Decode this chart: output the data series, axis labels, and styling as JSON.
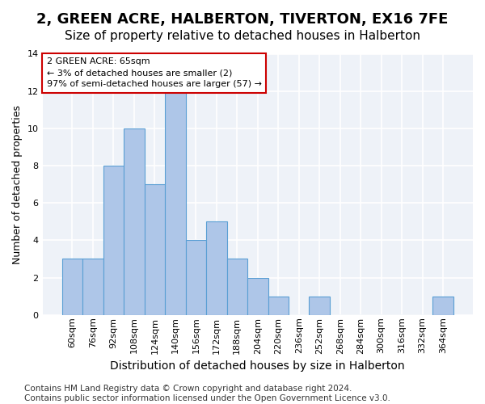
{
  "title": "2, GREEN ACRE, HALBERTON, TIVERTON, EX16 7FE",
  "subtitle": "Size of property relative to detached houses in Halberton",
  "xlabel": "Distribution of detached houses by size in Halberton",
  "ylabel": "Number of detached properties",
  "bar_values": [
    3,
    3,
    8,
    10,
    7,
    12,
    4,
    5,
    3,
    2,
    1,
    0,
    1,
    0,
    0,
    0,
    0,
    0,
    1
  ],
  "bin_labels": [
    "60sqm",
    "76sqm",
    "92sqm",
    "108sqm",
    "124sqm",
    "140sqm",
    "156sqm",
    "172sqm",
    "188sqm",
    "204sqm",
    "220sqm",
    "236sqm",
    "252sqm",
    "268sqm",
    "284sqm",
    "300sqm",
    "316sqm",
    "332sqm",
    "364sqm"
  ],
  "bar_color": "#aec6e8",
  "bar_edge_color": "#5a9fd4",
  "background_color": "#eef2f8",
  "grid_color": "#ffffff",
  "ylim": [
    0,
    14
  ],
  "yticks": [
    0,
    2,
    4,
    6,
    8,
    10,
    12,
    14
  ],
  "annotation_line1": "2 GREEN ACRE: 65sqm",
  "annotation_line2": "← 3% of detached houses are smaller (2)",
  "annotation_line3": "97% of semi-detached houses are larger (57) →",
  "annotation_box_color": "#ffffff",
  "annotation_border_color": "#cc0000",
  "footer_text": "Contains HM Land Registry data © Crown copyright and database right 2024.\nContains public sector information licensed under the Open Government Licence v3.0.",
  "title_fontsize": 13,
  "subtitle_fontsize": 11,
  "xlabel_fontsize": 10,
  "ylabel_fontsize": 9,
  "tick_fontsize": 8,
  "footer_fontsize": 7.5
}
